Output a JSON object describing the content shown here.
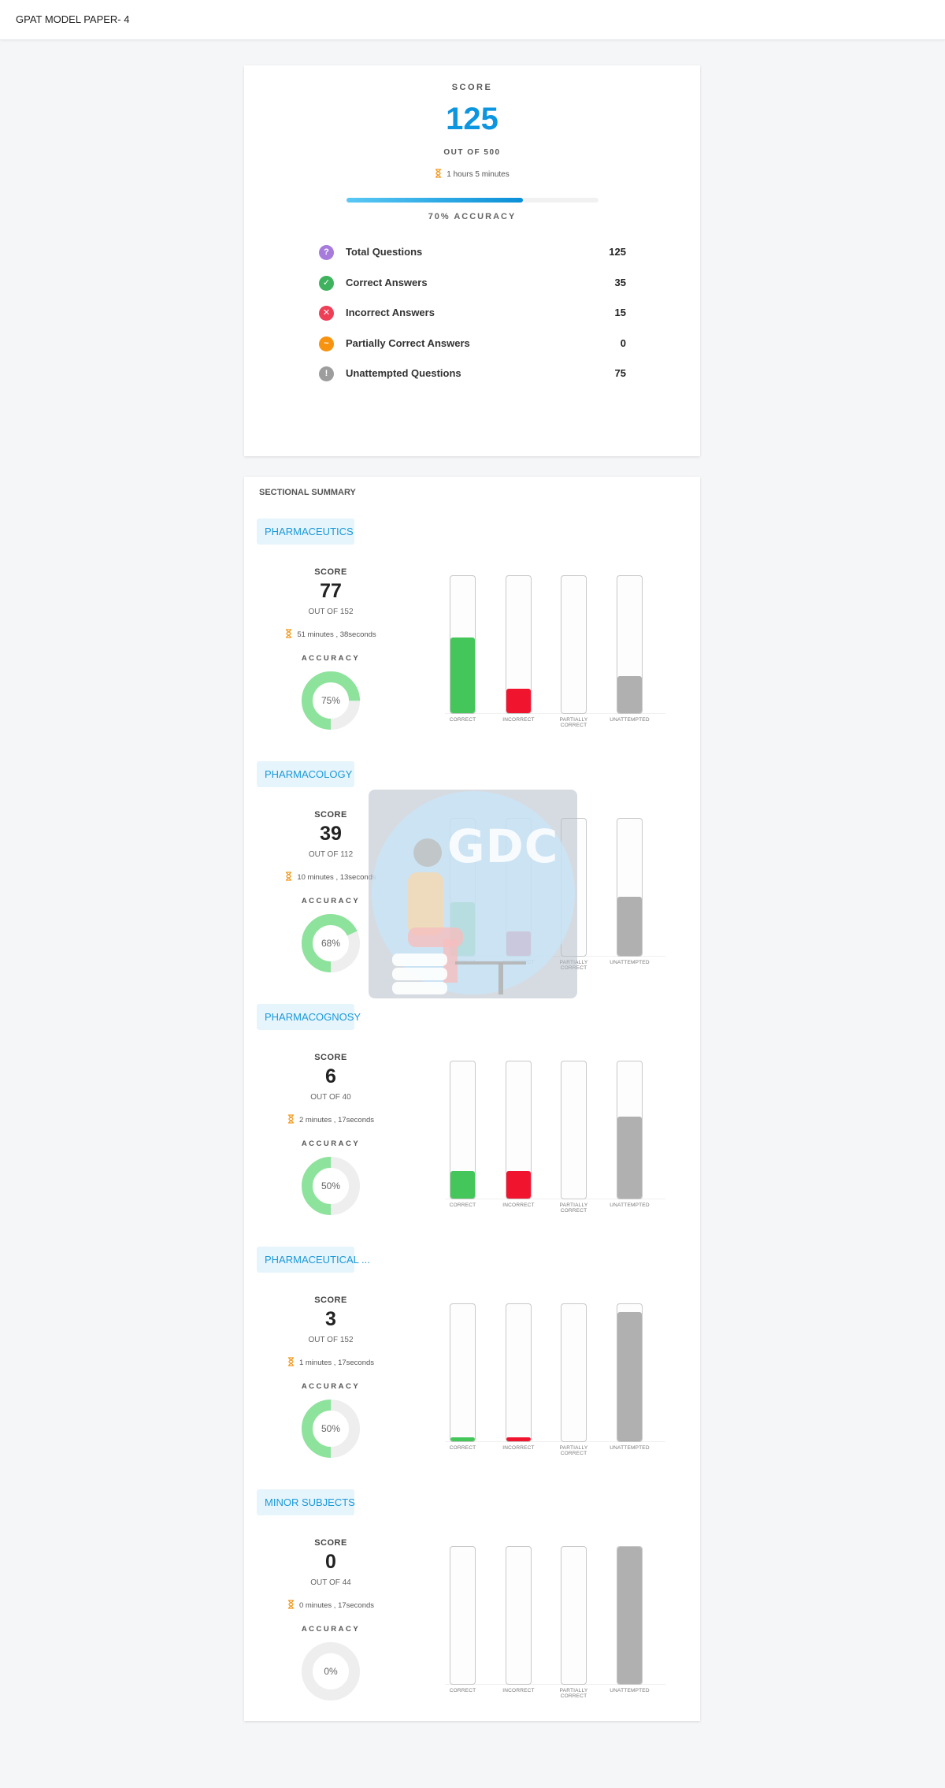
{
  "header": {
    "title": "GPAT MODEL PAPER- 4"
  },
  "summary": {
    "score_label": "SCORE",
    "score": "125",
    "out_of": "OUT OF 500",
    "time": "1 hours 5 minutes",
    "accuracy_pct": 70,
    "accuracy_label": "70% ACCURACY",
    "stats": [
      {
        "icon": "question-icon",
        "glyph": "?",
        "color": "#a77bdb",
        "label": "Total Questions",
        "value": "125"
      },
      {
        "icon": "check-icon",
        "glyph": "✓",
        "color": "#3eb25d",
        "label": "Correct Answers",
        "value": "35"
      },
      {
        "icon": "cross-icon",
        "glyph": "✕",
        "color": "#ee3f57",
        "label": "Incorrect Answers",
        "value": "15"
      },
      {
        "icon": "tilde-icon",
        "glyph": "~",
        "color": "#f8930f",
        "label": "Partially Correct Answers",
        "value": "0"
      },
      {
        "icon": "exclamation-icon",
        "glyph": "!",
        "color": "#9d9d9d",
        "label": "Unattempted Questions",
        "value": "75"
      }
    ]
  },
  "sectional": {
    "title": "SECTIONAL SUMMARY",
    "score_label": "SCORE",
    "accuracy_label": "ACCURACY",
    "bar_labels": [
      "CORRECT",
      "INCORRECT",
      "PARTIALLY CORRECT",
      "UNATTEMPTED"
    ],
    "sections": [
      {
        "name": "PHARMACEUTICS",
        "score": "77",
        "out_of": "OUT OF 152",
        "time": "51 minutes , 38seconds",
        "accuracy": "75%",
        "accuracy_pct": 75,
        "bars": [
          55,
          18,
          0,
          27
        ]
      },
      {
        "name": "PHARMACOLOGY",
        "score": "39",
        "out_of": "OUT OF 112",
        "time": "10 minutes , 13seconds",
        "accuracy": "68%",
        "accuracy_pct": 68,
        "bars": [
          39,
          18,
          0,
          43
        ]
      },
      {
        "name": "PHARMACOGNOSY",
        "score": "6",
        "out_of": "OUT OF 40",
        "time": "2 minutes , 17seconds",
        "accuracy": "50%",
        "accuracy_pct": 50,
        "bars": [
          20,
          20,
          0,
          60
        ]
      },
      {
        "name": "PHARMACEUTICAL ...",
        "score": "3",
        "out_of": "OUT OF 152",
        "time": "1 minutes , 17seconds",
        "accuracy": "50%",
        "accuracy_pct": 50,
        "bars": [
          3,
          3,
          0,
          94
        ]
      },
      {
        "name": "MINOR SUBJECTS",
        "score": "0",
        "out_of": "OUT OF 44",
        "time": "0 minutes , 17seconds",
        "accuracy": "0%",
        "accuracy_pct": 0,
        "bars": [
          0,
          0,
          0,
          100
        ]
      }
    ]
  },
  "colors": {
    "accent": "#0d96e0",
    "correct": "#45c65b",
    "incorrect": "#f0142f",
    "partial": "#f8930f",
    "unattempted": "#b0b0b0",
    "donut": "#8de39c",
    "donut_track": "#eeeeee",
    "hourglass": "#f39a1e"
  },
  "watermark": {
    "text": "GDC"
  }
}
